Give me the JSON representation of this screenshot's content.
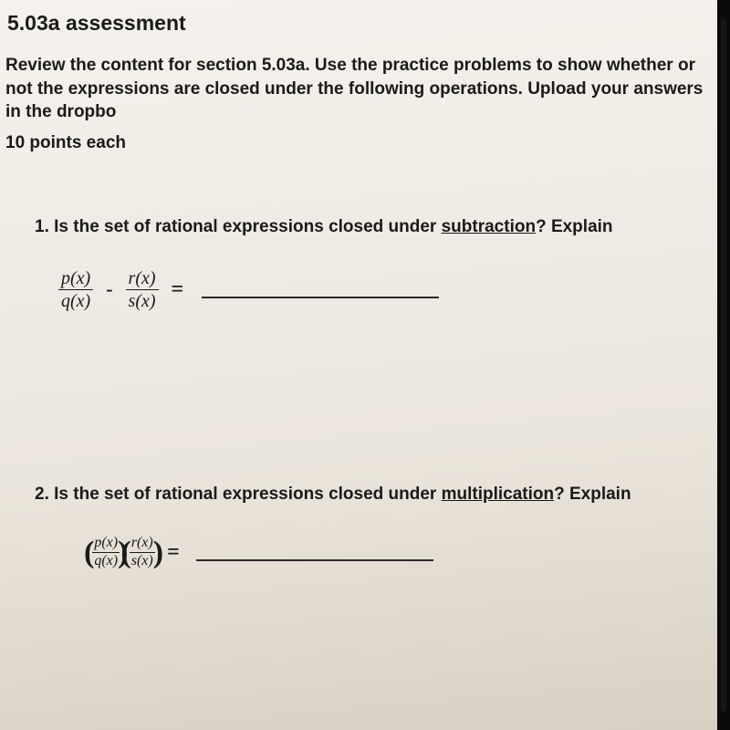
{
  "title": "5.03a assessment",
  "instructions": "Review the content for section 5.03a.  Use the practice problems to show whether or not the expressions are closed under the following operations. Upload your answers in the dropbo",
  "points": "10 points each",
  "q1": {
    "num": "1.",
    "before": "Is the set of rational expressions closed under ",
    "op_word": "subtraction",
    "after": "?  Explain",
    "f1n": "p(x)",
    "f1d": "q(x)",
    "op": "-",
    "f2n": "r(x)",
    "f2d": "s(x)",
    "eq": "="
  },
  "q2": {
    "num": "2.",
    "before": "Is the set of rational expressions closed under ",
    "op_word": "multiplication",
    "after": "?  Explain",
    "f1n": "p(x)",
    "f1d": "q(x)",
    "f2n": "r(x)",
    "f2d": "s(x)",
    "eq": "="
  },
  "paren_l": "(",
  "paren_r": ")"
}
